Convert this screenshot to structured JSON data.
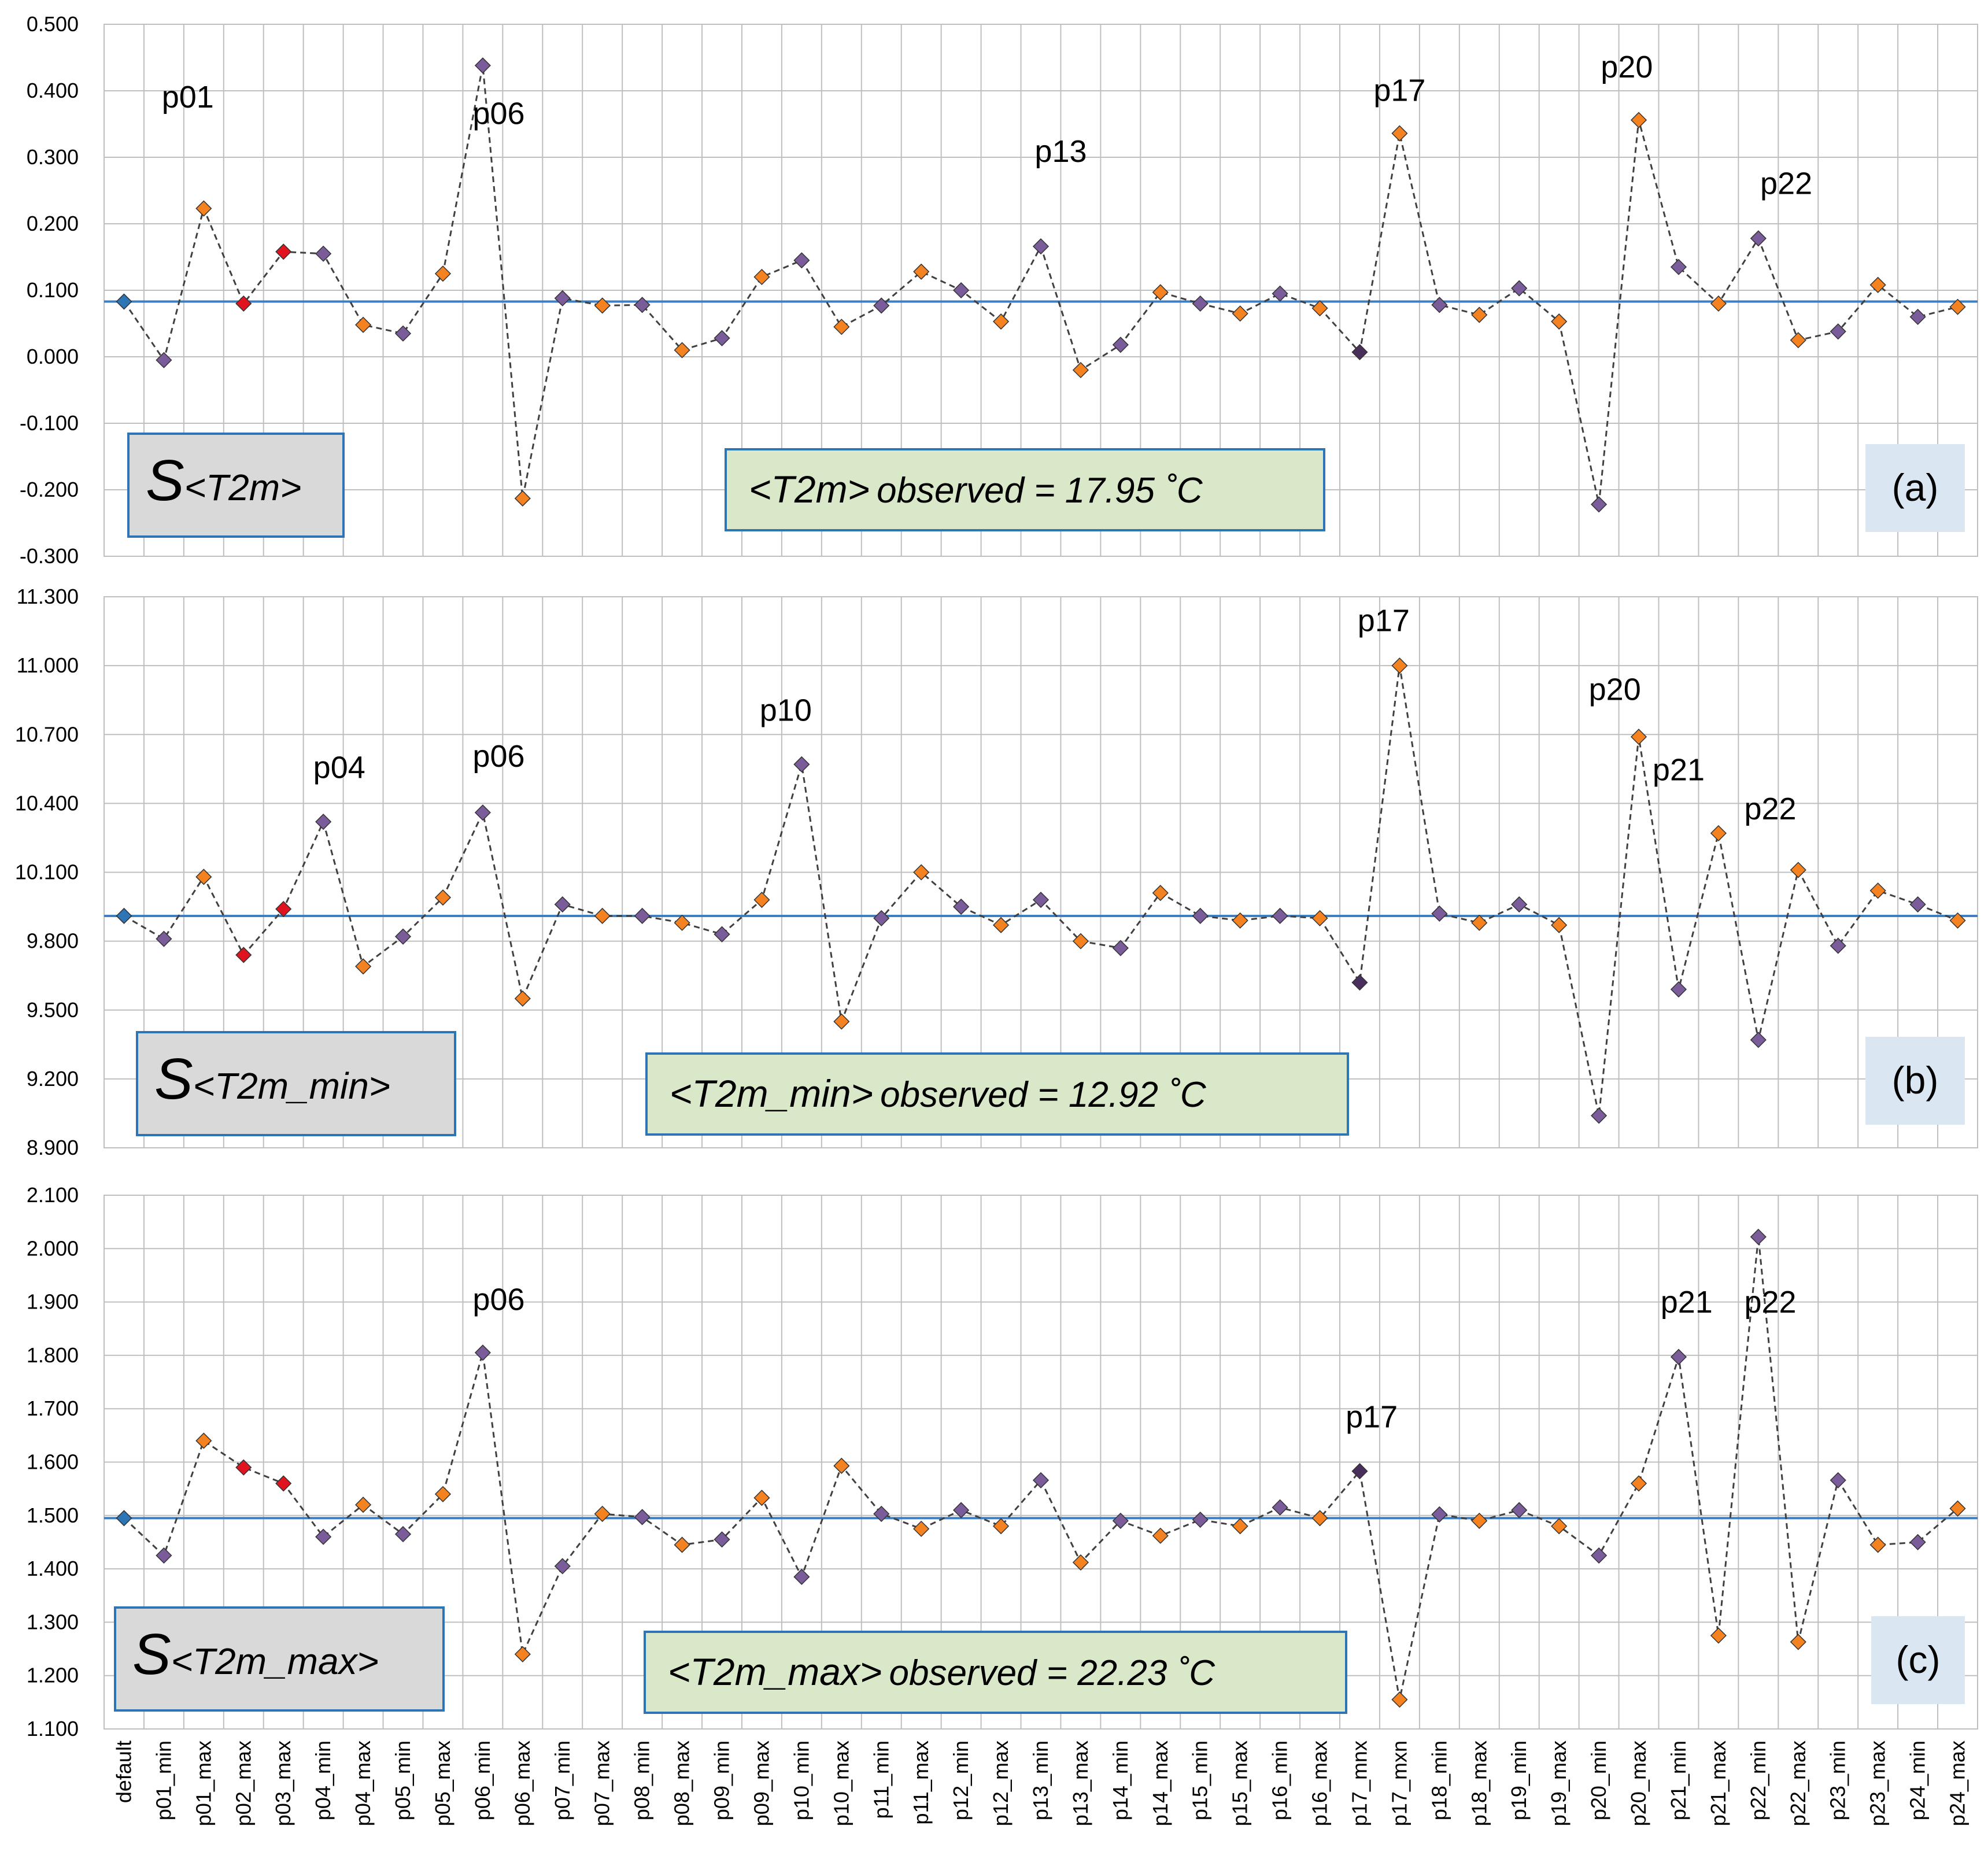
{
  "chart_data": {
    "type": "line",
    "categories": [
      "default",
      "p01_min",
      "p01_max",
      "p02_max",
      "p03_max",
      "p04_min",
      "p04_max",
      "p05_min",
      "p05_max",
      "p06_min",
      "p06_max",
      "p07_min",
      "p07_max",
      "p08_min",
      "p08_max",
      "p09_min",
      "p09_max",
      "p10_min",
      "p10_max",
      "p11_min",
      "p11_max",
      "p12_min",
      "p12_max",
      "p13_min",
      "p13_max",
      "p14_min",
      "p14_max",
      "p15_min",
      "p15_max",
      "p16_min",
      "p16_max",
      "p17_mnx",
      "p17_mxn",
      "p18_min",
      "p18_max",
      "p19_min",
      "p19_max",
      "p20_min",
      "p20_max",
      "p21_min",
      "p21_max",
      "p22_min",
      "p22_max",
      "p23_min",
      "p23_max",
      "p24_min",
      "p24_max"
    ],
    "colors": {
      "default": "#2E75B6",
      "purple": "#7B5C9A",
      "orange": "#F58220",
      "red": "#E0141E",
      "dark": "#4A2E5C",
      "reference_line": "#3F7FBF"
    },
    "panels": [
      {
        "id": "a",
        "panel_letter": "(a)",
        "label_prefix": "S",
        "label_var": "<T2m>",
        "observed_var": "<T2m>",
        "observed_text": "observed = 17.95 ˚C",
        "ylim": [
          -0.3,
          0.5
        ],
        "ystep": 0.1,
        "ytick_labels": [
          "-0.300",
          "-0.200",
          "-0.100",
          "0.000",
          "0.100",
          "0.200",
          "0.300",
          "0.400",
          "0.500"
        ],
        "reference": 0.083,
        "values": [
          0.083,
          -0.005,
          0.223,
          0.08,
          0.158,
          0.155,
          0.048,
          0.035,
          0.125,
          0.438,
          -0.213,
          0.088,
          0.077,
          0.078,
          0.01,
          0.028,
          0.12,
          0.145,
          0.045,
          0.077,
          0.128,
          0.1,
          0.053,
          0.166,
          -0.02,
          0.018,
          0.097,
          0.08,
          0.065,
          0.095,
          0.073,
          0.007,
          0.336,
          0.078,
          0.063,
          0.103,
          0.053,
          -0.222,
          0.356,
          0.135,
          0.08,
          0.178,
          0.025,
          0.038,
          0.108,
          0.06,
          0.075
        ],
        "colors_by_point": [
          "default",
          "purple",
          "orange",
          "red",
          "red",
          "purple",
          "orange",
          "purple",
          "orange",
          "purple",
          "orange",
          "purple",
          "orange",
          "purple",
          "orange",
          "purple",
          "orange",
          "purple",
          "orange",
          "purple",
          "orange",
          "purple",
          "orange",
          "purple",
          "orange",
          "purple",
          "orange",
          "purple",
          "orange",
          "purple",
          "orange",
          "dark",
          "orange",
          "purple",
          "orange",
          "purple",
          "orange",
          "purple",
          "orange",
          "purple",
          "orange",
          "purple",
          "orange",
          "purple",
          "orange",
          "purple",
          "orange"
        ],
        "annotations": [
          {
            "text": "p01",
            "cat": 1.6,
            "value": 0.375
          },
          {
            "text": "p06",
            "cat": 9.4,
            "value": 0.35
          },
          {
            "text": "p13",
            "cat": 23.5,
            "value": 0.293
          },
          {
            "text": "p17",
            "cat": 32.0,
            "value": 0.385
          },
          {
            "text": "p20",
            "cat": 37.7,
            "value": 0.42
          },
          {
            "text": "p22",
            "cat": 41.7,
            "value": 0.245
          }
        ]
      },
      {
        "id": "b",
        "panel_letter": "(b)",
        "label_prefix": "S",
        "label_var": "<T2m_min>",
        "observed_var": "<T2m_min>",
        "observed_text": "observed = 12.92 ˚C",
        "ylim": [
          8.9,
          11.3
        ],
        "ystep": 0.3,
        "ytick_labels": [
          "8.900",
          "9.200",
          "9.500",
          "9.800",
          "10.100",
          "10.400",
          "10.700",
          "11.000",
          "11.300"
        ],
        "reference": 9.91,
        "values": [
          9.91,
          9.81,
          10.08,
          9.74,
          9.94,
          10.32,
          9.69,
          9.82,
          9.99,
          10.36,
          9.55,
          9.96,
          9.91,
          9.91,
          9.88,
          9.83,
          9.98,
          10.57,
          9.45,
          9.9,
          10.1,
          9.95,
          9.87,
          9.98,
          9.8,
          9.77,
          10.01,
          9.91,
          9.89,
          9.91,
          9.9,
          9.62,
          11.0,
          9.92,
          9.88,
          9.96,
          9.87,
          9.04,
          10.69,
          9.59,
          10.27,
          9.37,
          10.11,
          9.78,
          10.02,
          9.96,
          9.89
        ],
        "colors_by_point": [
          "default",
          "purple",
          "orange",
          "red",
          "red",
          "purple",
          "orange",
          "purple",
          "orange",
          "purple",
          "orange",
          "purple",
          "orange",
          "purple",
          "orange",
          "purple",
          "orange",
          "purple",
          "orange",
          "purple",
          "orange",
          "purple",
          "orange",
          "purple",
          "orange",
          "purple",
          "orange",
          "purple",
          "orange",
          "purple",
          "orange",
          "dark",
          "orange",
          "purple",
          "orange",
          "purple",
          "orange",
          "purple",
          "orange",
          "purple",
          "orange",
          "purple",
          "orange",
          "purple",
          "orange",
          "purple",
          "orange"
        ],
        "annotations": [
          {
            "text": "p04",
            "cat": 5.4,
            "value": 10.51
          },
          {
            "text": "p06",
            "cat": 9.4,
            "value": 10.56
          },
          {
            "text": "p10",
            "cat": 16.6,
            "value": 10.76
          },
          {
            "text": "p17",
            "cat": 31.6,
            "value": 11.15
          },
          {
            "text": "p20",
            "cat": 37.4,
            "value": 10.85
          },
          {
            "text": "p21",
            "cat": 39.0,
            "value": 10.5
          },
          {
            "text": "p22",
            "cat": 41.3,
            "value": 10.33
          }
        ]
      },
      {
        "id": "c",
        "panel_letter": "(c)",
        "label_prefix": "S",
        "label_var": "<T2m_max>",
        "observed_var": "<T2m_max>",
        "observed_text": "observed = 22.23 ˚C",
        "ylim": [
          1.1,
          2.1
        ],
        "ystep": 0.1,
        "ytick_labels": [
          "1.100",
          "1.200",
          "1.300",
          "1.400",
          "1.500",
          "1.600",
          "1.700",
          "1.800",
          "1.900",
          "2.000",
          "2.100"
        ],
        "reference": 1.495,
        "values": [
          1.495,
          1.425,
          1.64,
          1.59,
          1.56,
          1.46,
          1.52,
          1.465,
          1.54,
          1.805,
          1.24,
          1.405,
          1.503,
          1.497,
          1.445,
          1.455,
          1.533,
          1.385,
          1.593,
          1.503,
          1.475,
          1.51,
          1.48,
          1.566,
          1.412,
          1.49,
          1.462,
          1.492,
          1.48,
          1.515,
          1.495,
          1.583,
          1.155,
          1.502,
          1.49,
          1.51,
          1.48,
          1.425,
          1.56,
          1.797,
          1.275,
          2.022,
          1.263,
          1.566,
          1.445,
          1.45,
          1.513
        ],
        "colors_by_point": [
          "default",
          "purple",
          "orange",
          "red",
          "red",
          "purple",
          "orange",
          "purple",
          "orange",
          "purple",
          "orange",
          "purple",
          "orange",
          "purple",
          "orange",
          "purple",
          "orange",
          "purple",
          "orange",
          "purple",
          "orange",
          "purple",
          "orange",
          "purple",
          "orange",
          "purple",
          "orange",
          "purple",
          "orange",
          "purple",
          "orange",
          "dark",
          "orange",
          "purple",
          "orange",
          "purple",
          "orange",
          "purple",
          "orange",
          "purple",
          "orange",
          "purple",
          "orange",
          "purple",
          "orange",
          "purple",
          "orange"
        ],
        "annotations": [
          {
            "text": "p06",
            "cat": 9.4,
            "value": 1.885
          },
          {
            "text": "p17",
            "cat": 31.3,
            "value": 1.665
          },
          {
            "text": "p21",
            "cat": 39.2,
            "value": 1.88
          },
          {
            "text": "p22",
            "cat": 41.3,
            "value": 1.88
          }
        ]
      }
    ]
  }
}
